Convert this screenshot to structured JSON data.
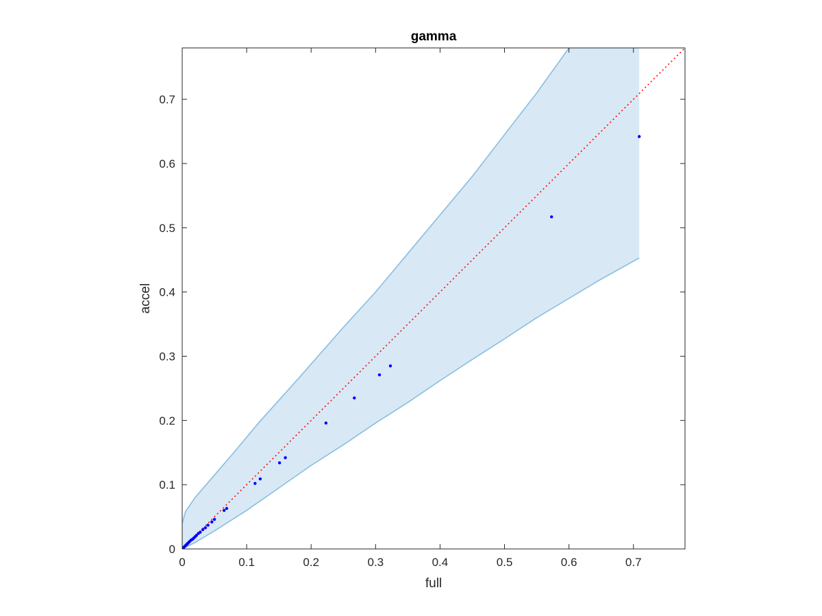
{
  "chart_data": {
    "type": "scatter",
    "title": "gamma",
    "xlabel": "full",
    "ylabel": "accel",
    "xlim": [
      0,
      0.78
    ],
    "ylim": [
      0,
      0.78
    ],
    "xticks": [
      0,
      0.1,
      0.2,
      0.3,
      0.4,
      0.5,
      0.6,
      0.7
    ],
    "yticks": [
      0,
      0.1,
      0.2,
      0.3,
      0.4,
      0.5,
      0.6,
      0.7
    ],
    "xtick_labels": [
      "0",
      "0.1",
      "0.2",
      "0.3",
      "0.4",
      "0.5",
      "0.6",
      "0.7"
    ],
    "ytick_labels": [
      "0",
      "0.1",
      "0.2",
      "0.3",
      "0.4",
      "0.5",
      "0.6",
      "0.7"
    ],
    "grid": false,
    "box": true,
    "reference_line": {
      "style": "dotted",
      "color": "#ff0000",
      "points": [
        [
          0,
          0
        ],
        [
          0.78,
          0.78
        ]
      ]
    },
    "confidence_band": {
      "color": "#d8e8f5",
      "edge_color": "#86bee0",
      "upper": [
        [
          0,
          0.04
        ],
        [
          0.005,
          0.058
        ],
        [
          0.02,
          0.08
        ],
        [
          0.05,
          0.115
        ],
        [
          0.08,
          0.15
        ],
        [
          0.12,
          0.198
        ],
        [
          0.18,
          0.265
        ],
        [
          0.25,
          0.345
        ],
        [
          0.3,
          0.4
        ],
        [
          0.35,
          0.46
        ],
        [
          0.4,
          0.52
        ],
        [
          0.45,
          0.58
        ],
        [
          0.5,
          0.645
        ],
        [
          0.55,
          0.71
        ],
        [
          0.6,
          0.78
        ]
      ],
      "lower": [
        [
          0,
          0
        ],
        [
          0.02,
          0.01
        ],
        [
          0.05,
          0.028
        ],
        [
          0.1,
          0.06
        ],
        [
          0.15,
          0.095
        ],
        [
          0.2,
          0.13
        ],
        [
          0.25,
          0.162
        ],
        [
          0.3,
          0.196
        ],
        [
          0.35,
          0.228
        ],
        [
          0.4,
          0.262
        ],
        [
          0.45,
          0.295
        ],
        [
          0.5,
          0.327
        ],
        [
          0.55,
          0.36
        ],
        [
          0.6,
          0.39
        ],
        [
          0.65,
          0.42
        ],
        [
          0.709,
          0.453
        ]
      ],
      "right_edge_x": 0.709
    },
    "series": [
      {
        "marker_color": "#0000ff",
        "points": [
          [
            0.001,
            0.001
          ],
          [
            0.002,
            0.002
          ],
          [
            0.003,
            0.003
          ],
          [
            0.004,
            0.004
          ],
          [
            0.005,
            0.005
          ],
          [
            0.006,
            0.006
          ],
          [
            0.007,
            0.007
          ],
          [
            0.008,
            0.008
          ],
          [
            0.009,
            0.009
          ],
          [
            0.01,
            0.01
          ],
          [
            0.012,
            0.012
          ],
          [
            0.014,
            0.014
          ],
          [
            0.016,
            0.015
          ],
          [
            0.018,
            0.017
          ],
          [
            0.02,
            0.019
          ],
          [
            0.022,
            0.021
          ],
          [
            0.025,
            0.024
          ],
          [
            0.028,
            0.026
          ],
          [
            0.032,
            0.03
          ],
          [
            0.036,
            0.033
          ],
          [
            0.04,
            0.037
          ],
          [
            0.046,
            0.042
          ],
          [
            0.05,
            0.046
          ],
          [
            0.065,
            0.06
          ],
          [
            0.069,
            0.063
          ],
          [
            0.113,
            0.102
          ],
          [
            0.121,
            0.109
          ],
          [
            0.151,
            0.134
          ],
          [
            0.16,
            0.142
          ],
          [
            0.223,
            0.196
          ],
          [
            0.267,
            0.235
          ],
          [
            0.306,
            0.271
          ],
          [
            0.323,
            0.285
          ],
          [
            0.573,
            0.517
          ],
          [
            0.709,
            0.642
          ]
        ]
      }
    ]
  }
}
